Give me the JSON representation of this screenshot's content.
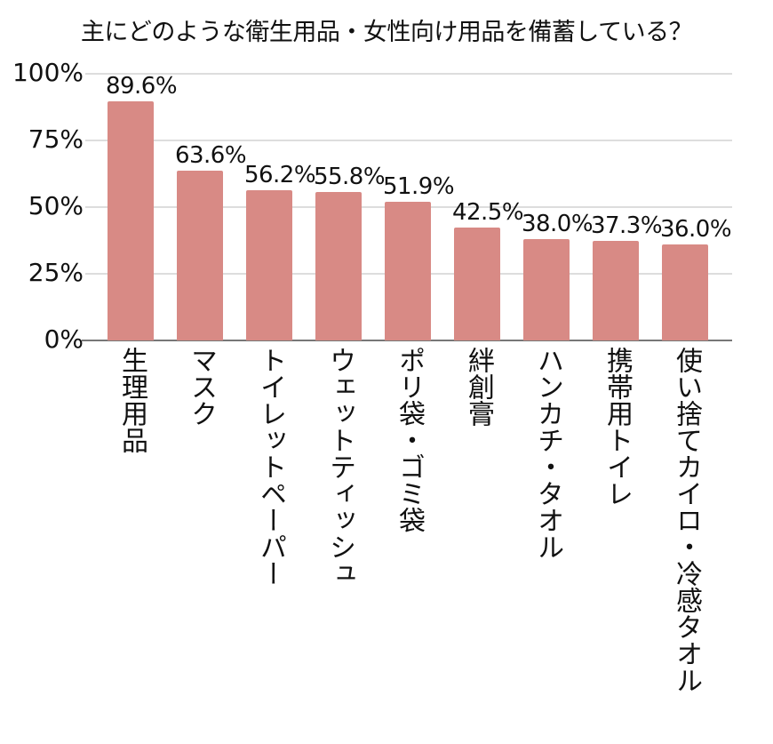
{
  "chart_data": {
    "type": "bar",
    "title": "主にどのような衛生用品・女性向け用品を備蓄している？",
    "xlabel": "",
    "ylabel": "",
    "ylim": [
      0,
      100
    ],
    "yticks": [
      "0%",
      "25%",
      "50%",
      "75%",
      "100%"
    ],
    "grid": true,
    "legend": null,
    "bar_color": "#d88a85",
    "categories": [
      "生理用品",
      "マスク",
      "トイレットペーパー",
      "ウェットティッシュ",
      "ポリ袋・ゴミ袋",
      "絆創膏",
      "ハンカチ・タオル",
      "携帯用トイレ",
      "使い捨てカイロ・冷感タオル"
    ],
    "values": [
      89.6,
      63.6,
      56.2,
      55.8,
      51.9,
      42.5,
      38.0,
      37.3,
      36.0
    ],
    "value_labels": [
      "89.6%",
      "63.6%",
      "56.2%",
      "55.8%",
      "51.9%",
      "42.5%",
      "38.0%",
      "37.3%",
      "36.0%"
    ]
  }
}
